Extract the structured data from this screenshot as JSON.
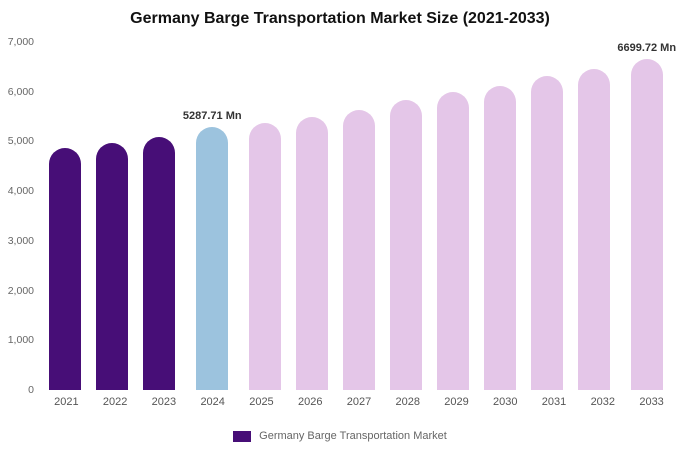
{
  "chart_data": {
    "type": "bar",
    "title": "Germany Barge Transportation Market Size (2021-2033)",
    "xlabel": "",
    "ylabel": "",
    "ylim": [
      0,
      7000
    ],
    "yticks": [
      "7,000",
      "6,000",
      "5,000",
      "4,000",
      "3,000",
      "2,000",
      "1,000",
      "0"
    ],
    "categories": [
      "2021",
      "2022",
      "2023",
      "2024",
      "2025",
      "2026",
      "2027",
      "2028",
      "2029",
      "2030",
      "2031",
      "2032",
      "2033"
    ],
    "values": [
      4870,
      4970,
      5090,
      5287.71,
      5370,
      5490,
      5630,
      5830,
      5990,
      6110,
      6310,
      6460,
      6699.72
    ],
    "color_roles": [
      "historic",
      "historic",
      "historic",
      "current",
      "forecast",
      "forecast",
      "forecast",
      "forecast",
      "forecast",
      "forecast",
      "forecast",
      "forecast",
      "forecast"
    ],
    "colors": {
      "historic": "#470e77",
      "current": "#9cc3de",
      "forecast": "#e4c6e8"
    },
    "value_labels": {
      "3": "5287.71 Mn",
      "12": "6699.72 Mn"
    },
    "grid": false,
    "legend_position": "bottom"
  },
  "legend": {
    "label": "Germany Barge Transportation Market",
    "swatch_color": "#470e77"
  }
}
